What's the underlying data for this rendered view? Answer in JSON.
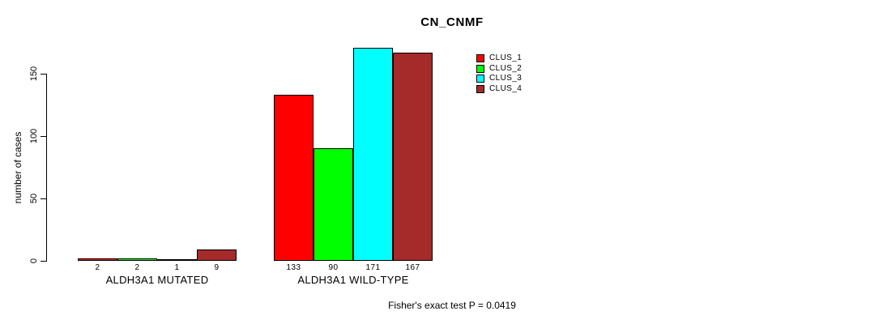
{
  "title": "CN_CNMF",
  "footer": "Fisher's exact test P = 0.0419",
  "chart_data": {
    "type": "bar",
    "title": "CN_CNMF",
    "xlabel": "",
    "ylabel": "number of cases",
    "ylim": [
      0,
      171
    ],
    "yticks": [
      0,
      50,
      100,
      150
    ],
    "grid": false,
    "legend_position": "top-right",
    "categories": [
      "ALDH3A1 MUTATED",
      "ALDH3A1 WILD-TYPE"
    ],
    "series": [
      {
        "name": "CLUS_1",
        "color": "#FF0000",
        "values": [
          2,
          133
        ]
      },
      {
        "name": "CLUS_2",
        "color": "#00FF00",
        "values": [
          2,
          90
        ]
      },
      {
        "name": "CLUS_3",
        "color": "#00FFFF",
        "values": [
          1,
          171
        ]
      },
      {
        "name": "CLUS_4",
        "color": "#A52A2A",
        "values": [
          9,
          167
        ]
      }
    ],
    "annotation": "Fisher's exact test P = 0.0419"
  }
}
